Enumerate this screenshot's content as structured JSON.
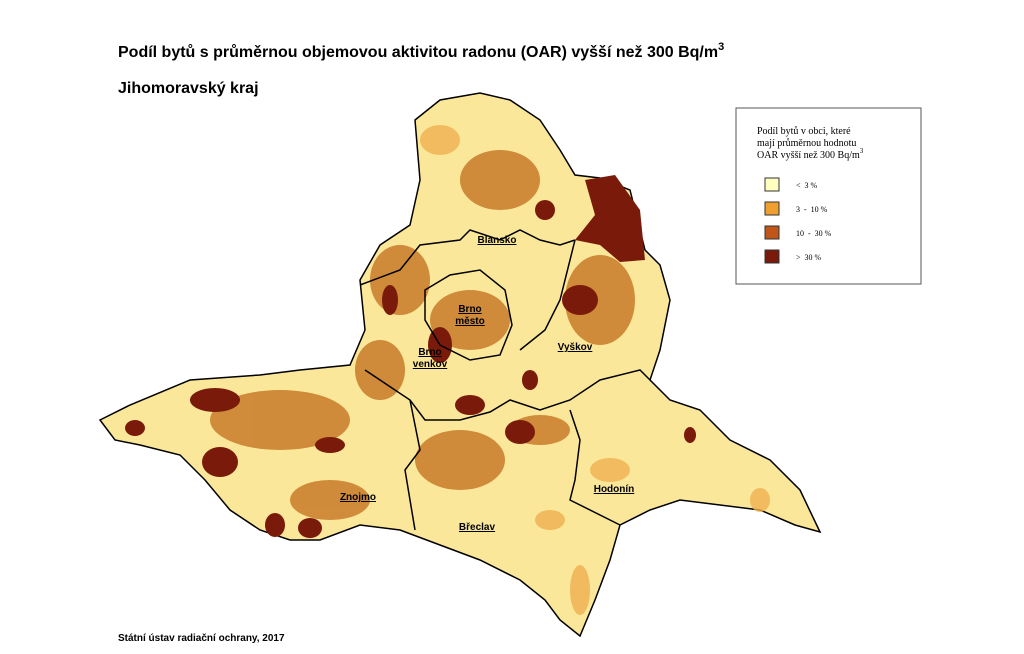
{
  "header": {
    "title": {
      "text": "Podíl bytů s průměrnou objemovou aktivitou radonu (OAR) vyšší než 300 Bq/m",
      "superscript": "3"
    },
    "subtitle": "Jihomoravský kraj"
  },
  "legend": {
    "title_lines": [
      "Podíl bytů v obci, které",
      "mají průměrnou hodnotu"
    ],
    "title_last": {
      "text": "OAR vyšší než 300 Bq/m",
      "superscript": "3"
    },
    "items": [
      {
        "label": "<  3 %",
        "color": "#ffffc0"
      },
      {
        "label": "3  -  10 %",
        "color": "#f0a030"
      },
      {
        "label": "10  -  30 %",
        "color": "#c0561a"
      },
      {
        "label": ">  30 %",
        "color": "#7a1a0a"
      }
    ]
  },
  "districts": [
    {
      "lines": [
        "Blansko"
      ]
    },
    {
      "lines": [
        "Brno",
        "město"
      ]
    },
    {
      "lines": [
        "Brno",
        "venkov"
      ]
    },
    {
      "lines": [
        "Vyškov"
      ]
    },
    {
      "lines": [
        "Znojmo"
      ]
    },
    {
      "lines": [
        "Břeclav"
      ]
    },
    {
      "lines": [
        "Hodonín"
      ]
    }
  ],
  "source": "Státní ústav radiační ochrany, 2017"
}
